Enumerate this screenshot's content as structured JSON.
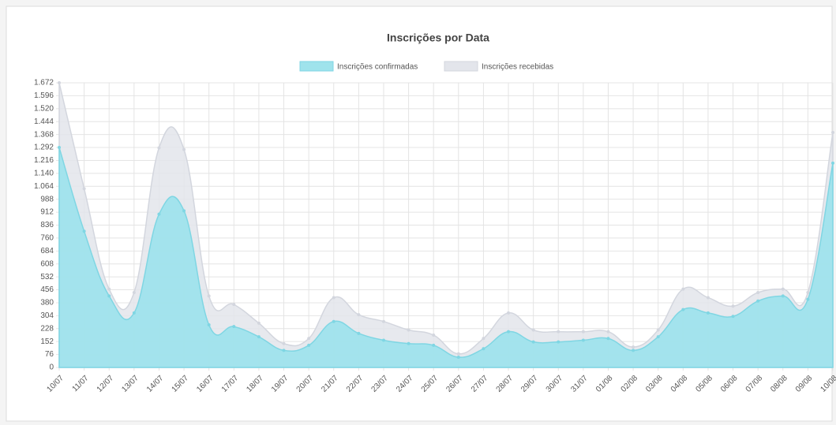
{
  "chart_data": {
    "type": "area",
    "title": "Inscrições por Data",
    "legend": "top",
    "grid": true,
    "categories": [
      "10/07",
      "11/07",
      "12/07",
      "13/07",
      "14/07",
      "15/07",
      "16/07",
      "17/07",
      "18/07",
      "19/07",
      "20/07",
      "21/07",
      "22/07",
      "23/07",
      "24/07",
      "25/07",
      "26/07",
      "27/07",
      "28/07",
      "29/07",
      "30/07",
      "31/07",
      "01/08",
      "02/08",
      "03/08",
      "04/08",
      "05/08",
      "06/08",
      "07/08",
      "08/08",
      "09/08",
      "10/08"
    ],
    "series": [
      {
        "name": "Inscrições confirmadas",
        "color": "#9fe3ec",
        "values": [
          1292,
          800,
          420,
          320,
          900,
          920,
          250,
          240,
          180,
          100,
          130,
          270,
          200,
          160,
          140,
          130,
          60,
          110,
          210,
          150,
          150,
          160,
          170,
          100,
          180,
          340,
          320,
          300,
          390,
          420,
          400,
          1200
        ]
      },
      {
        "name": "Inscrições recebidas",
        "color": "#e3e5eb",
        "values": [
          1672,
          1050,
          460,
          440,
          1290,
          1280,
          420,
          370,
          260,
          140,
          170,
          410,
          310,
          270,
          220,
          190,
          80,
          170,
          320,
          220,
          210,
          210,
          210,
          120,
          220,
          460,
          410,
          360,
          440,
          460,
          440,
          1380
        ]
      }
    ],
    "ylim": [
      0,
      1672
    ],
    "yticks": [
      0,
      76,
      152,
      228,
      304,
      380,
      456,
      532,
      608,
      684,
      760,
      836,
      912,
      988,
      {
        "value": 1064,
        "label": "1.064"
      },
      {
        "value": 1140,
        "label": "1.140"
      },
      {
        "value": 1216,
        "label": "1.216"
      },
      {
        "value": 1292,
        "label": "1.292"
      },
      {
        "value": 1368,
        "label": "1.368"
      },
      {
        "value": 1444,
        "label": "1.444"
      },
      {
        "value": 1520,
        "label": "1.520"
      },
      {
        "value": 1596,
        "label": "1.596"
      },
      {
        "value": 1672,
        "label": "1.672"
      }
    ]
  }
}
